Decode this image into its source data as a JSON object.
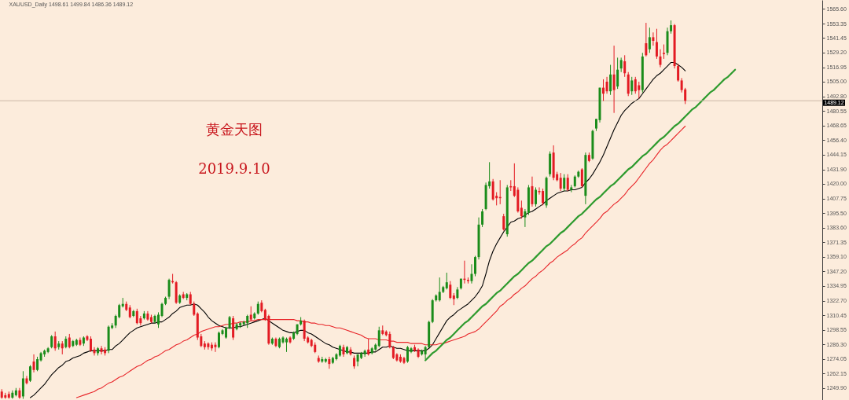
{
  "chart_data": {
    "type": "candlestick",
    "title": "XAUUSD_Daily  1498.61 1499.84 1486.36 1489.12",
    "annotations": [
      "黄金天图",
      "2019.9.10"
    ],
    "categories": [
      null,
      null,
      null,
      null,
      null,
      null,
      null,
      null,
      null,
      null,
      null,
      null,
      null,
      null,
      null,
      null,
      null,
      null,
      null,
      null,
      null,
      null,
      null,
      null,
      null,
      null,
      null,
      null,
      null,
      null,
      null,
      null,
      null,
      null,
      null,
      null,
      null,
      null,
      null,
      null,
      null,
      null,
      null,
      null,
      null,
      null,
      null,
      null,
      null,
      null,
      null,
      null,
      null,
      null,
      null,
      null,
      null,
      null,
      null,
      null,
      null,
      null,
      null,
      null,
      null,
      null,
      null,
      null,
      null,
      null,
      null,
      null,
      null,
      null,
      null,
      null,
      null,
      null,
      null,
      null,
      null,
      null,
      null,
      null,
      null,
      null,
      null,
      null,
      null,
      null,
      null,
      null,
      null,
      null,
      null,
      null,
      null,
      null,
      null,
      null,
      null,
      null,
      null,
      null,
      null,
      null,
      null,
      null,
      null,
      null,
      null,
      null,
      null,
      null,
      null,
      null,
      null,
      null,
      null,
      null,
      null,
      null,
      null,
      null,
      null,
      null,
      null,
      null,
      null,
      null,
      null,
      null,
      null,
      null,
      null,
      null,
      null,
      null,
      null,
      null,
      null,
      null,
      null,
      null,
      null,
      null,
      null,
      null,
      null,
      null,
      null,
      null,
      null,
      null,
      null,
      null,
      null,
      null,
      null,
      null,
      null,
      null,
      null,
      null,
      null,
      null,
      null,
      null,
      null,
      null,
      null,
      null,
      null,
      null,
      null,
      null,
      null,
      null,
      null,
      null,
      null,
      null,
      null,
      null,
      null,
      null,
      null,
      null,
      null,
      null,
      null,
      null,
      null,
      null,
      null,
      null,
      null,
      null,
      null,
      null,
      null,
      null,
      null,
      null,
      null,
      null,
      null,
      null,
      null,
      null,
      null,
      null,
      null,
      null,
      null,
      null,
      null,
      null,
      null,
      null,
      null,
      null,
      null,
      null,
      null,
      null,
      null,
      null,
      null,
      null,
      null
    ],
    "ohlc": [
      [
        1247,
        1249,
        1241,
        1242
      ],
      [
        1244,
        1246,
        1241,
        1242
      ],
      [
        1245,
        1247,
        1241,
        1242
      ],
      [
        1242,
        1248,
        1241,
        1246
      ],
      [
        1244,
        1250,
        1243,
        1248
      ],
      [
        1248,
        1250,
        1241,
        1242
      ],
      [
        1243,
        1264,
        1241,
        1258
      ],
      [
        1258,
        1260,
        1253,
        1254
      ],
      [
        1256,
        1269,
        1255,
        1268
      ],
      [
        1272,
        1278,
        1263,
        1265
      ],
      [
        1265,
        1276,
        1264,
        1274
      ],
      [
        1273,
        1280,
        1272,
        1279
      ],
      [
        1278,
        1282,
        1276,
        1281
      ],
      [
        1280,
        1284,
        1279,
        1283
      ],
      [
        1284,
        1294,
        1283,
        1293
      ],
      [
        1293,
        1297,
        1281,
        1283
      ],
      [
        1284,
        1289,
        1282,
        1287
      ],
      [
        1287,
        1289,
        1278,
        1283
      ],
      [
        1284,
        1293,
        1283,
        1291
      ],
      [
        1292,
        1295,
        1283,
        1284
      ],
      [
        1285,
        1290,
        1284,
        1289
      ],
      [
        1286,
        1291,
        1285,
        1290
      ],
      [
        1290,
        1292,
        1285,
        1286
      ],
      [
        1287,
        1293,
        1285,
        1292
      ],
      [
        1293,
        1294,
        1289,
        1290
      ],
      [
        1291,
        1293,
        1280,
        1281
      ],
      [
        1282,
        1284,
        1277,
        1279
      ],
      [
        1279,
        1284,
        1277,
        1283
      ],
      [
        1283,
        1285,
        1278,
        1280
      ],
      [
        1282,
        1284,
        1277,
        1279
      ],
      [
        1281,
        1302,
        1279,
        1301
      ],
      [
        1300,
        1304,
        1299,
        1302
      ],
      [
        1302,
        1311,
        1300,
        1310
      ],
      [
        1309,
        1320,
        1308,
        1319
      ],
      [
        1318,
        1325,
        1317,
        1320
      ],
      [
        1320,
        1322,
        1314,
        1315
      ],
      [
        1317,
        1319,
        1308,
        1309
      ],
      [
        1310,
        1315,
        1309,
        1314
      ],
      [
        1314,
        1316,
        1303,
        1304
      ],
      [
        1308,
        1310,
        1302,
        1304
      ],
      [
        1308,
        1314,
        1307,
        1312
      ],
      [
        1312,
        1314,
        1306,
        1307
      ],
      [
        1309,
        1311,
        1304,
        1305
      ],
      [
        1305,
        1311,
        1304,
        1310
      ],
      [
        1303,
        1313,
        1300,
        1311
      ],
      [
        1310,
        1321,
        1309,
        1320
      ],
      [
        1320,
        1326,
        1319,
        1325
      ],
      [
        1326,
        1341,
        1324,
        1340
      ],
      [
        1339,
        1345,
        1337,
        1338
      ],
      [
        1338,
        1339,
        1320,
        1321
      ],
      [
        1321,
        1328,
        1320,
        1327
      ],
      [
        1328,
        1330,
        1324,
        1325
      ],
      [
        1325,
        1329,
        1323,
        1328
      ],
      [
        1328,
        1330,
        1319,
        1320
      ],
      [
        1320,
        1322,
        1310,
        1311
      ],
      [
        1312,
        1313,
        1290,
        1292
      ],
      [
        1293,
        1295,
        1284,
        1285
      ],
      [
        1287,
        1289,
        1282,
        1284
      ],
      [
        1287,
        1288,
        1282,
        1284
      ],
      [
        1286,
        1288,
        1281,
        1283
      ],
      [
        1286,
        1288,
        1280,
        1284
      ],
      [
        1284,
        1297,
        1283,
        1296
      ],
      [
        1295,
        1299,
        1294,
        1298
      ],
      [
        1292,
        1301,
        1291,
        1300
      ],
      [
        1300,
        1310,
        1299,
        1309
      ],
      [
        1308,
        1310,
        1290,
        1292
      ],
      [
        1299,
        1304,
        1298,
        1303
      ],
      [
        1302,
        1305,
        1300,
        1304
      ],
      [
        1303,
        1306,
        1302,
        1305
      ],
      [
        1304,
        1311,
        1300,
        1310
      ],
      [
        1311,
        1318,
        1306,
        1307
      ],
      [
        1308,
        1313,
        1307,
        1312
      ],
      [
        1312,
        1322,
        1311,
        1320
      ],
      [
        1321,
        1323,
        1313,
        1314
      ],
      [
        1315,
        1316,
        1306,
        1307
      ],
      [
        1310,
        1311,
        1286,
        1287
      ],
      [
        1287,
        1292,
        1286,
        1291
      ],
      [
        1291,
        1292,
        1284,
        1285
      ],
      [
        1284,
        1292,
        1283,
        1291
      ],
      [
        1288,
        1293,
        1287,
        1292
      ],
      [
        1288,
        1292,
        1280,
        1291
      ],
      [
        1292,
        1293,
        1287,
        1288
      ],
      [
        1291,
        1297,
        1290,
        1296
      ],
      [
        1295,
        1303,
        1294,
        1303
      ],
      [
        1303,
        1309,
        1302,
        1306
      ],
      [
        1306,
        1307,
        1289,
        1291
      ],
      [
        1292,
        1293,
        1287,
        1288
      ],
      [
        1290,
        1291,
        1284,
        1285
      ],
      [
        1286,
        1288,
        1279,
        1280
      ],
      [
        1275,
        1277,
        1271,
        1272
      ],
      [
        1272,
        1276,
        1271,
        1274
      ],
      [
        1272,
        1275,
        1271,
        1274
      ],
      [
        1274,
        1276,
        1266,
        1270
      ],
      [
        1271,
        1276,
        1270,
        1275
      ],
      [
        1274,
        1279,
        1273,
        1278
      ],
      [
        1277,
        1286,
        1276,
        1285
      ],
      [
        1284,
        1286,
        1276,
        1278
      ],
      [
        1279,
        1285,
        1278,
        1284
      ],
      [
        1282,
        1284,
        1277,
        1278
      ],
      [
        1275,
        1277,
        1266,
        1268
      ],
      [
        1272,
        1278,
        1268,
        1278
      ],
      [
        1275,
        1280,
        1274,
        1279
      ],
      [
        1278,
        1282,
        1276,
        1281
      ],
      [
        1282,
        1291,
        1277,
        1278
      ],
      [
        1279,
        1284,
        1278,
        1283
      ],
      [
        1282,
        1287,
        1281,
        1286
      ],
      [
        1285,
        1301,
        1284,
        1298
      ],
      [
        1298,
        1302,
        1294,
        1295
      ],
      [
        1297,
        1298,
        1293,
        1294
      ],
      [
        1295,
        1297,
        1283,
        1284
      ],
      [
        1284,
        1285,
        1274,
        1275
      ],
      [
        1278,
        1279,
        1272,
        1273
      ],
      [
        1276,
        1278,
        1271,
        1272
      ],
      [
        1275,
        1276,
        1270,
        1271
      ],
      [
        1272,
        1285,
        1271,
        1284
      ],
      [
        1280,
        1284,
        1279,
        1283
      ],
      [
        1284,
        1286,
        1280,
        1281
      ],
      [
        1282,
        1283,
        1275,
        1276
      ],
      [
        1278,
        1282,
        1277,
        1281
      ],
      [
        1278,
        1285,
        1274,
        1284
      ],
      [
        1284,
        1306,
        1283,
        1305
      ],
      [
        1305,
        1324,
        1304,
        1323
      ],
      [
        1323,
        1328,
        1322,
        1327
      ],
      [
        1323,
        1342,
        1322,
        1330
      ],
      [
        1330,
        1335,
        1329,
        1334
      ],
      [
        1333,
        1346,
        1332,
        1338
      ],
      [
        1336,
        1339,
        1324,
        1325
      ],
      [
        1327,
        1329,
        1319,
        1324
      ],
      [
        1325,
        1334,
        1324,
        1332
      ],
      [
        1333,
        1341,
        1332,
        1341
      ],
      [
        1341,
        1356,
        1337,
        1340
      ],
      [
        1340,
        1342,
        1337,
        1339
      ],
      [
        1339,
        1353,
        1337,
        1345
      ],
      [
        1345,
        1360,
        1343,
        1359
      ],
      [
        1359,
        1392,
        1357,
        1386
      ],
      [
        1386,
        1399,
        1384,
        1397
      ],
      [
        1399,
        1421,
        1398,
        1419
      ],
      [
        1418,
        1438,
        1416,
        1422
      ],
      [
        1422,
        1424,
        1406,
        1407
      ],
      [
        1410,
        1413,
        1402,
        1408
      ],
      [
        1409,
        1423,
        1403,
        1408
      ],
      [
        1393,
        1395,
        1381,
        1382
      ],
      [
        1378,
        1419,
        1376,
        1417
      ],
      [
        1418,
        1423,
        1414,
        1417
      ],
      [
        1418,
        1437,
        1409,
        1410
      ],
      [
        1415,
        1417,
        1396,
        1397
      ],
      [
        1400,
        1406,
        1391,
        1393
      ],
      [
        1392,
        1399,
        1384,
        1397
      ],
      [
        1396,
        1419,
        1394,
        1417
      ],
      [
        1418,
        1426,
        1401,
        1403
      ],
      [
        1403,
        1417,
        1401,
        1415
      ],
      [
        1414,
        1417,
        1411,
        1413
      ],
      [
        1414,
        1416,
        1402,
        1404
      ],
      [
        1402,
        1426,
        1400,
        1425
      ],
      [
        1428,
        1447,
        1426,
        1445
      ],
      [
        1446,
        1452,
        1423,
        1425
      ],
      [
        1428,
        1430,
        1422,
        1423
      ],
      [
        1425,
        1429,
        1414,
        1416
      ],
      [
        1416,
        1428,
        1414,
        1425
      ],
      [
        1425,
        1428,
        1414,
        1415
      ],
      [
        1415,
        1419,
        1413,
        1417
      ],
      [
        1418,
        1427,
        1417,
        1426
      ],
      [
        1426,
        1431,
        1425,
        1430
      ],
      [
        1432,
        1433,
        1417,
        1418
      ],
      [
        1410,
        1446,
        1403,
        1444
      ],
      [
        1444,
        1446,
        1438,
        1439
      ],
      [
        1441,
        1465,
        1440,
        1464
      ],
      [
        1466,
        1474,
        1464,
        1474
      ],
      [
        1473,
        1500,
        1471,
        1500
      ],
      [
        1500,
        1507,
        1489,
        1495
      ],
      [
        1505,
        1509,
        1495,
        1497
      ],
      [
        1497,
        1519,
        1494,
        1511
      ],
      [
        1511,
        1535,
        1479,
        1498
      ],
      [
        1501,
        1525,
        1499,
        1515
      ],
      [
        1516,
        1525,
        1513,
        1523
      ],
      [
        1522,
        1527,
        1509,
        1512
      ],
      [
        1511,
        1513,
        1493,
        1495
      ],
      [
        1497,
        1509,
        1494,
        1506
      ],
      [
        1507,
        1509,
        1495,
        1497
      ],
      [
        1502,
        1505,
        1491,
        1498
      ],
      [
        1498,
        1529,
        1496,
        1526
      ],
      [
        1537,
        1554,
        1526,
        1527
      ],
      [
        1532,
        1550,
        1529,
        1542
      ],
      [
        1542,
        1546,
        1535,
        1539
      ],
      [
        1538,
        1549,
        1524,
        1526
      ],
      [
        1526,
        1532,
        1517,
        1519
      ],
      [
        1529,
        1536,
        1524,
        1528
      ],
      [
        1529,
        1550,
        1527,
        1547
      ],
      [
        1547,
        1556,
        1545,
        1552
      ],
      [
        1552,
        1553,
        1516,
        1518
      ],
      [
        1518,
        1520,
        1505,
        1506
      ],
      [
        1506,
        1508,
        1496,
        1498
      ],
      [
        1498.61,
        1499.84,
        1486.36,
        1489.12
      ],
      null,
      null,
      null,
      null,
      null,
      null,
      null,
      null,
      null,
      null,
      null,
      null,
      null,
      null,
      null,
      null,
      null,
      null,
      null,
      null,
      null,
      null,
      null,
      null,
      null,
      null,
      null,
      null,
      null,
      null,
      null,
      null,
      null,
      null,
      null,
      null,
      null,
      null
    ],
    "colors": [
      "#e31b23",
      "#e31b23",
      "#e31b23",
      "#1a8c1a",
      "#1a8c1a",
      "#e31b23",
      "#1a8c1a",
      "#e31b23",
      "#1a8c1a",
      "#e31b23",
      "#1a8c1a",
      "#1a8c1a",
      "#1a8c1a",
      "#1a8c1a",
      "#1a8c1a",
      "#e31b23",
      "#1a8c1a",
      "#e31b23",
      "#1a8c1a",
      "#e31b23",
      "#1a8c1a",
      "#1a8c1a",
      "#e31b23",
      "#1a8c1a",
      "#e31b23",
      "#e31b23",
      "#e31b23",
      "#1a8c1a",
      "#e31b23",
      "#e31b23",
      "#1a8c1a",
      "#1a8c1a",
      "#1a8c1a",
      "#1a8c1a",
      "#1a8c1a",
      "#e31b23",
      "#e31b23",
      "#1a8c1a",
      "#e31b23",
      "#e31b23",
      "#1a8c1a",
      "#e31b23",
      "#e31b23",
      "#1a8c1a",
      "#1a8c1a",
      "#1a8c1a",
      "#1a8c1a",
      "#1a8c1a",
      "#e31b23",
      "#e31b23",
      "#1a8c1a",
      "#e31b23",
      "#1a8c1a",
      "#e31b23",
      "#e31b23",
      "#e31b23",
      "#e31b23",
      "#e31b23",
      "#e31b23",
      "#e31b23",
      "#e31b23",
      "#1a8c1a",
      "#1a8c1a",
      "#1a8c1a",
      "#1a8c1a",
      "#e31b23",
      "#1a8c1a",
      "#1a8c1a",
      "#1a8c1a",
      "#1a8c1a",
      "#e31b23",
      "#1a8c1a",
      "#1a8c1a",
      "#e31b23",
      "#e31b23",
      "#e31b23",
      "#1a8c1a",
      "#e31b23",
      "#1a8c1a",
      "#1a8c1a",
      "#1a8c1a",
      "#e31b23",
      "#1a8c1a",
      "#1a8c1a",
      "#1a8c1a",
      "#e31b23",
      "#e31b23",
      "#e31b23",
      "#e31b23",
      "#e31b23",
      "#1a8c1a",
      "#1a8c1a",
      "#e31b23",
      "#1a8c1a",
      "#1a8c1a",
      "#1a8c1a",
      "#e31b23",
      "#1a8c1a",
      "#e31b23",
      "#e31b23",
      "#1a8c1a",
      "#1a8c1a",
      "#1a8c1a",
      "#e31b23",
      "#1a8c1a",
      "#1a8c1a",
      "#1a8c1a",
      "#e31b23",
      "#e31b23",
      "#e31b23",
      "#e31b23",
      "#e31b23",
      "#e31b23",
      "#e31b23",
      "#1a8c1a",
      "#1a8c1a",
      "#e31b23",
      "#e31b23",
      "#1a8c1a",
      "#1a8c1a",
      "#1a8c1a",
      "#1a8c1a",
      "#1a8c1a",
      "#1a8c1a",
      "#1a8c1a",
      "#1a8c1a",
      "#e31b23",
      "#e31b23",
      "#1a8c1a",
      "#1a8c1a",
      "#e31b23",
      "#e31b23",
      "#1a8c1a",
      "#1a8c1a",
      "#1a8c1a",
      "#1a8c1a",
      "#1a8c1a",
      "#1a8c1a",
      "#e31b23",
      "#e31b23",
      "#e31b23",
      "#e31b23",
      "#1a8c1a",
      "#e31b23",
      "#e31b23",
      "#e31b23",
      "#e31b23",
      "#1a8c1a",
      "#1a8c1a",
      "#e31b23",
      "#1a8c1a",
      "#e31b23",
      "#e31b23",
      "#1a8c1a",
      "#1a8c1a",
      "#e31b23",
      "#e31b23",
      "#e31b23",
      "#1a8c1a",
      "#e31b23",
      "#1a8c1a",
      "#1a8c1a",
      "#1a8c1a",
      "#e31b23",
      "#1a8c1a",
      "#e31b23",
      "#1a8c1a",
      "#1a8c1a",
      "#1a8c1a",
      "#e31b23",
      "#e31b23",
      "#1a8c1a",
      "#e31b23",
      "#1a8c1a",
      "#1a8c1a",
      "#e31b23",
      "#e31b23",
      "#1a8c1a",
      "#e31b23",
      "#e31b23",
      "#1a8c1a",
      "#e31b23",
      "#1a8c1a",
      "#e31b23",
      "#e31b23",
      "#e31b23",
      "#e31b23",
      "#1a8c1a",
      "#1a8c1a",
      "#e31b23",
      "#e31b23",
      "#e31b23",
      "#e31b23",
      null,
      null,
      null,
      null,
      null,
      null,
      null,
      null,
      null,
      null,
      null,
      null,
      null,
      null,
      null,
      null,
      null,
      null,
      null,
      null,
      null,
      null,
      null,
      null,
      null,
      null,
      null,
      null,
      null,
      null,
      null,
      null,
      null,
      null,
      null,
      null,
      null,
      null
    ],
    "series": [
      {
        "type": "line",
        "color": "#000000",
        "values": [
          null,
          null,
          null,
          null,
          null,
          null,
          null,
          null,
          1242,
          1244,
          1247,
          1250,
          1253,
          1257,
          1261,
          1264,
          1267,
          1269,
          1272,
          1273,
          1275,
          1276,
          1277,
          1279,
          1280,
          1281,
          1281,
          1281,
          1281,
          1281,
          1282,
          1282,
          1285,
          1287,
          1290,
          1293,
          1296,
          1298,
          1300,
          1301,
          1302,
          1303,
          1304,
          1304,
          1305,
          1305,
          1307,
          1309,
          1312,
          1314,
          1317,
          1318,
          1319,
          1319,
          1320,
          1319,
          1316,
          1313,
          1309,
          1306,
          1304,
          1302,
          1301,
          1300,
          1300,
          1300,
          1301,
          1301,
          1302,
          1303,
          1304,
          1305,
          1306,
          1307,
          1308,
          1306,
          1304,
          1302,
          1300,
          1298,
          1297,
          1296,
          1296,
          1297,
          1298,
          1298,
          1296,
          1295,
          1293,
          1291,
          1289,
          1287,
          1286,
          1284,
          1283,
          1282,
          1281,
          1280,
          1280,
          1279,
          1279,
          1279,
          1279,
          1279,
          1280,
          1280,
          1282,
          1284,
          1284,
          1285,
          1284,
          1283,
          1283,
          1282,
          1281,
          1281,
          1281,
          1281,
          1281,
          1281,
          1283,
          1286,
          1291,
          1296,
          1301,
          1306,
          1309,
          1311,
          1314,
          1316,
          1318,
          1320,
          1323,
          1326,
          1330,
          1335,
          1345,
          1356,
          1364,
          1370,
          1375,
          1380,
          1384,
          1388,
          1389,
          1391,
          1392,
          1394,
          1396,
          1397,
          1399,
          1401,
          1403,
          1406,
          1408,
          1410,
          1412,
          1413,
          1414,
          1414,
          1415,
          1415,
          1416,
          1417,
          1421,
          1424,
          1428,
          1433,
          1438,
          1444,
          1451,
          1458,
          1465,
          1471,
          1477,
          1481,
          1484,
          1487,
          1489,
          1491,
          1495,
          1499,
          1503,
          1507,
          1510,
          1512,
          1515,
          1518,
          1521,
          1521,
          1519,
          1517,
          1514,
          null,
          null,
          null,
          null,
          null,
          null,
          null,
          null,
          null,
          null,
          null,
          null,
          null,
          null,
          null,
          null,
          null,
          null,
          null,
          null,
          null,
          null,
          null,
          null,
          null,
          null,
          null,
          null,
          null,
          null,
          null,
          null,
          null,
          null,
          null,
          null,
          null,
          null
        ]
      },
      {
        "type": "line",
        "color": "#e8262a",
        "values": [
          null,
          null,
          null,
          null,
          null,
          null,
          null,
          null,
          null,
          null,
          null,
          null,
          null,
          null,
          null,
          null,
          null,
          null,
          null,
          null,
          null,
          1242,
          1243,
          1244,
          1245,
          1246,
          1247,
          1249,
          1250,
          1252,
          1254,
          1255,
          1257,
          1259,
          1260,
          1262,
          1264,
          1266,
          1268,
          1269,
          1271,
          1273,
          1274,
          1276,
          1277,
          1279,
          1281,
          1282,
          1284,
          1286,
          1287,
          1289,
          1290,
          1292,
          1294,
          1295,
          1297,
          1298,
          1299,
          1300,
          1301,
          1301,
          1302,
          1303,
          1303,
          1304,
          1304,
          1305,
          1305,
          1305,
          1306,
          1306,
          1307,
          1307,
          1307,
          1307,
          1307,
          1307,
          1307,
          1307,
          1307,
          1307,
          1307,
          1306,
          1306,
          1305,
          1305,
          1304,
          1304,
          1303,
          1303,
          1302,
          1302,
          1301,
          1300,
          1300,
          1299,
          1298,
          1297,
          1296,
          1295,
          1294,
          1292,
          1291,
          1291,
          1291,
          1290,
          1290,
          1290,
          1289,
          1289,
          1288,
          1288,
          1288,
          1288,
          1287,
          1287,
          1287,
          1287,
          1286,
          1286,
          1286,
          1286,
          1287,
          1287,
          1288,
          1289,
          1290,
          1291,
          1292,
          1293,
          1295,
          1296,
          1297,
          1299,
          1302,
          1305,
          1308,
          1311,
          1314,
          1318,
          1320,
          1323,
          1325,
          1328,
          1330,
          1333,
          1335,
          1338,
          1341,
          1343,
          1346,
          1348,
          1351,
          1354,
          1356,
          1359,
          1361,
          1363,
          1365,
          1368,
          1370,
          1373,
          1375,
          1379,
          1382,
          1385,
          1388,
          1391,
          1395,
          1397,
          1400,
          1403,
          1405,
          1408,
          1411,
          1415,
          1418,
          1421,
          1425,
          1429,
          1433,
          1437,
          1440,
          1444,
          1448,
          1451,
          1453,
          1456,
          1459,
          1462,
          1465,
          1468,
          null,
          null,
          null,
          null,
          null,
          null,
          null,
          null,
          null,
          null,
          null,
          null,
          null,
          null,
          null,
          null,
          null,
          null,
          null,
          null,
          null,
          null,
          null,
          null,
          null,
          null,
          null,
          null,
          null,
          null,
          null,
          null,
          null,
          null,
          null,
          null,
          null,
          null
        ]
      },
      {
        "type": "line",
        "color": "#2e9b2e",
        "values": [
          null,
          null,
          null,
          null,
          null,
          null,
          null,
          null,
          null,
          null,
          null,
          null,
          null,
          null,
          null,
          null,
          null,
          null,
          null,
          null,
          null,
          null,
          null,
          null,
          null,
          null,
          null,
          null,
          null,
          null,
          null,
          null,
          null,
          null,
          null,
          null,
          null,
          null,
          null,
          null,
          null,
          null,
          null,
          null,
          null,
          null,
          null,
          null,
          null,
          null,
          null,
          null,
          null,
          null,
          null,
          null,
          null,
          null,
          null,
          null,
          null,
          null,
          null,
          null,
          null,
          null,
          null,
          null,
          null,
          null,
          null,
          null,
          null,
          null,
          null,
          null,
          null,
          null,
          null,
          null,
          null,
          null,
          null,
          null,
          null,
          null,
          null,
          null,
          null,
          null,
          null,
          null,
          null,
          null,
          null,
          null,
          null,
          null,
          null,
          null,
          null,
          null,
          null,
          null,
          null,
          null,
          null,
          null,
          null,
          null,
          null,
          null,
          null,
          null,
          null,
          null,
          null,
          null,
          null,
          1273,
          1276,
          1279,
          1281,
          1284,
          1287,
          1290,
          1292,
          1295,
          1298,
          1301,
          1304,
          1306,
          1309,
          1312,
          1315,
          1318,
          1320,
          1323,
          1326,
          1329,
          1331,
          1334,
          1337,
          1340,
          1343,
          1345,
          1348,
          1351,
          1354,
          1356,
          1359,
          1362,
          1365,
          1368,
          1370,
          1373,
          1376,
          1379,
          1381,
          1384,
          1387,
          1390,
          1393,
          1395,
          1398,
          1401,
          1404,
          1407,
          1409,
          1412,
          1415,
          1418,
          1420,
          1423,
          1426,
          1429,
          1432,
          1434,
          1437,
          1440,
          1443,
          1445,
          1448,
          1451,
          1454,
          1457,
          1459,
          1462,
          1465,
          1468,
          1470,
          1473,
          1476,
          1479,
          1482,
          1484,
          1487,
          1490,
          1493,
          1496,
          1498,
          1501,
          1504,
          1507,
          1509,
          1512,
          1515,
          null,
          null,
          null,
          null,
          null,
          null,
          null,
          null,
          null,
          null,
          null,
          null,
          null,
          null,
          null,
          null,
          null,
          null,
          null,
          null,
          null,
          null,
          null,
          null
        ]
      }
    ],
    "ylim": [
      1240,
      1573
    ],
    "yticks": [
      {
        "value": 1565.6,
        "label": "1565.60"
      },
      1553.35,
      1541.45,
      {
        "value": 1529.2,
        "label": "1529.20"
      },
      1516.95,
      {
        "value": 1505,
        "label": "1505.00"
      },
      {
        "value": 1492.8,
        "label": "1492.80"
      },
      1480.55,
      1468.65,
      {
        "value": 1456.4,
        "label": "1456.40"
      },
      1444.15,
      {
        "value": 1431.9,
        "label": "1431.90"
      },
      {
        "value": 1420,
        "label": "1420.00"
      },
      1407.75,
      {
        "value": 1395.5,
        "label": "1395.50"
      },
      {
        "value": 1383.6,
        "label": "1383.60"
      },
      1371.35,
      {
        "value": 1359.1,
        "label": "1359.10"
      },
      {
        "value": 1347.2,
        "label": "1347.20"
      },
      1334.95,
      {
        "value": 1322.7,
        "label": "1322.70"
      },
      1310.45,
      1298.55,
      {
        "value": 1286.3,
        "label": "1286.30"
      },
      1274.05,
      1262.15,
      {
        "value": 1249.9,
        "label": "1249.90"
      }
    ],
    "ref_lines": [
      {
        "axis": "y",
        "value": 1489.12,
        "label": "1489.12",
        "color": "#cbb8a8"
      }
    ],
    "tick_labels": "y"
  }
}
